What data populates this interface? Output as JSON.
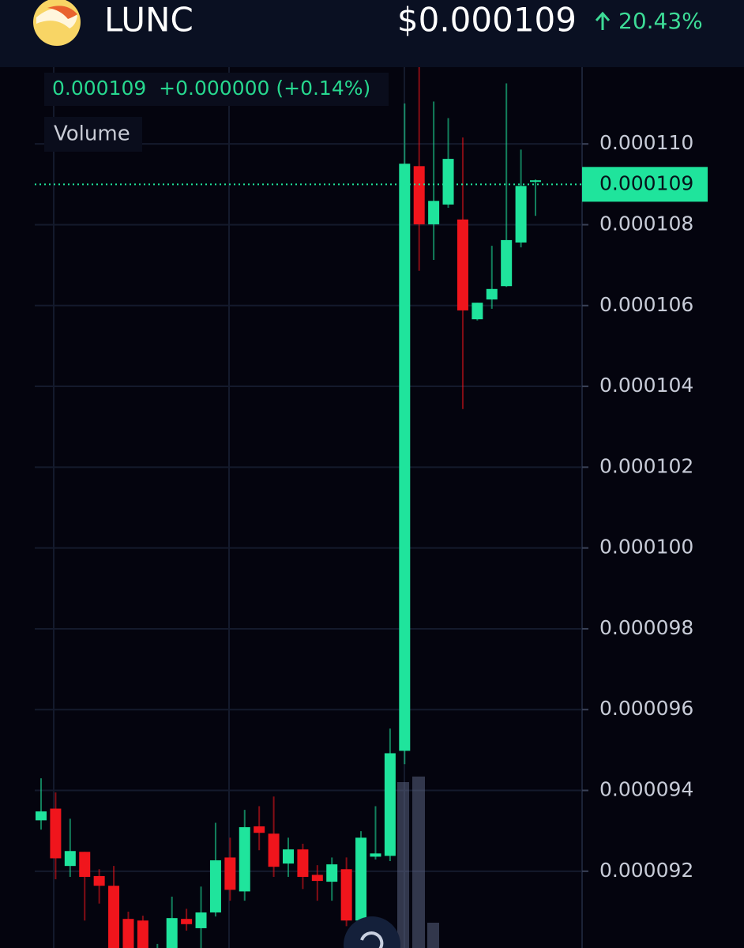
{
  "header": {
    "symbol": "LUNC",
    "price": "$0.000109",
    "change": "20.43%"
  },
  "chart_data": {
    "type": "candlestick",
    "legend_text": "0.000109  +0.000000 (+0.14%)",
    "volume_label": "Volume",
    "up_color": "#1fe49c",
    "down_color": "#f0151c",
    "last_price": {
      "value": 0.000109,
      "label": "0.000109"
    },
    "ylim": [
      9.01e-05,
      0.0001119
    ],
    "yticks": [
      {
        "value": 9.2e-05,
        "label": "0.000092"
      },
      {
        "value": 9.4e-05,
        "label": "0.000094"
      },
      {
        "value": 9.6e-05,
        "label": "0.000096"
      },
      {
        "value": 9.8e-05,
        "label": "0.000098"
      },
      {
        "value": 0.0001,
        "label": "0.000100"
      },
      {
        "value": 0.000102,
        "label": "0.000102"
      },
      {
        "value": 0.000104,
        "label": "0.000104"
      },
      {
        "value": 0.000106,
        "label": "0.000106"
      },
      {
        "value": 0.000108,
        "label": "0.000108"
      },
      {
        "value": 0.00011,
        "label": "0.000110"
      }
    ],
    "grid": true,
    "open": [
      9.326e-05,
      9.355e-05,
      9.213e-05,
      9.248e-05,
      9.188e-05,
      9.164e-05,
      9.082e-05,
      9.078e-05,
      8.98e-05,
      8.99e-05,
      9.082e-05,
      9.059e-05,
      9.098e-05,
      9.234e-05,
      9.15e-05,
      9.311e-05,
      9.293e-05,
      9.219e-05,
      9.254e-05,
      9.191e-05,
      9.174e-05,
      9.205e-05,
      9.078e-05,
      9.236e-05,
      9.238e-05,
      9.498e-05,
      0.00010945,
      0.00010801,
      0.0001085,
      0.00010813,
      0.00010566,
      0.00010615,
      0.00010648,
      0.00010756,
      0.00010906
    ],
    "high": [
      9.43e-05,
      9.395e-05,
      9.33e-05,
      9.248e-05,
      9.205e-05,
      9.213e-05,
      9.1e-05,
      9.09e-05,
      9.02e-05,
      9.137e-05,
      9.107e-05,
      9.162e-05,
      9.32e-05,
      9.283e-05,
      9.352e-05,
      9.361e-05,
      9.385e-05,
      9.283e-05,
      9.268e-05,
      9.215e-05,
      9.234e-05,
      9.234e-05,
      9.299e-05,
      9.361e-05,
      9.553e-05,
      0.000111,
      0.0001119,
      0.00011105,
      0.00011064,
      0.00011016,
      0.00010607,
      0.00010748,
      0.0001115,
      0.00010986,
      0.00010912
    ],
    "low": [
      9.303e-05,
      9.18e-05,
      9.186e-05,
      9.078e-05,
      9.12e-05,
      8.95e-05,
      8.95e-05,
      8.95e-05,
      8.95e-05,
      8.95e-05,
      9.053e-05,
      9.01e-05,
      9.088e-05,
      9.127e-05,
      9.127e-05,
      9.252e-05,
      9.186e-05,
      9.186e-05,
      9.156e-05,
      9.127e-05,
      9.127e-05,
      9.064e-05,
      9.068e-05,
      9.229e-05,
      9.225e-05,
      9.465e-05,
      0.00010686,
      0.00010713,
      0.00010842,
      0.00010344,
      0.00010563,
      0.00010592,
      0.00010646,
      0.00010744,
      0.00010822
    ],
    "close": [
      9.348e-05,
      9.232e-05,
      9.25e-05,
      9.186e-05,
      9.164e-05,
      8.99e-05,
      8.99e-05,
      8.98e-05,
      8.99e-05,
      9.084e-05,
      9.069e-05,
      9.098e-05,
      9.227e-05,
      9.154e-05,
      9.309e-05,
      9.295e-05,
      9.211e-05,
      9.254e-05,
      9.186e-05,
      9.176e-05,
      9.217e-05,
      9.078e-05,
      9.283e-05,
      9.244e-05,
      9.492e-05,
      0.00010951,
      0.00010801,
      0.00010859,
      0.00010963,
      0.00010588,
      0.00010607,
      0.00010641,
      0.00010762,
      0.00010896,
      0.0001091
    ]
  }
}
